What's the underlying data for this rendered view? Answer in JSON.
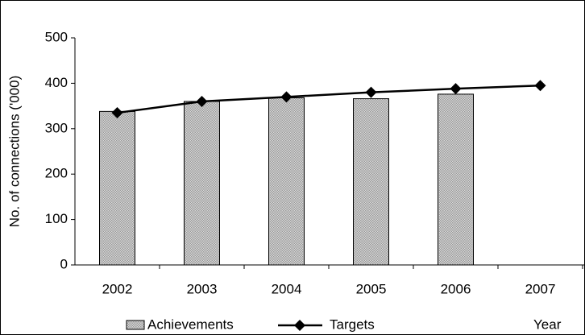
{
  "chart_data": {
    "type": "bar",
    "y_label": "No. of connections ('000)",
    "x_label": "Year",
    "categories": [
      "2002",
      "2003",
      "2004",
      "2005",
      "2006",
      "2007"
    ],
    "series": [
      {
        "name": "Achievements",
        "type": "bar",
        "color": "#9a9a9a",
        "values": [
          338,
          360,
          368,
          366,
          376,
          null
        ]
      },
      {
        "name": "Targets",
        "type": "line",
        "color": "#000000",
        "values": [
          335,
          360,
          370,
          380,
          388,
          395
        ]
      }
    ],
    "ylim": [
      0,
      500
    ],
    "yticks": [
      0,
      100,
      200,
      300,
      400,
      500
    ],
    "grid": false,
    "legend": "bottom"
  }
}
